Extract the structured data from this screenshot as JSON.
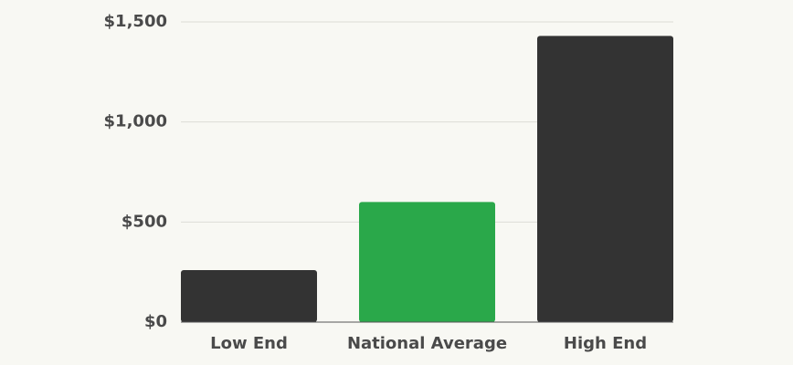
{
  "chart_data": {
    "type": "bar",
    "categories": [
      "Low End",
      "National Average",
      "High End"
    ],
    "values": [
      260,
      600,
      1430
    ],
    "colors": [
      "#333333",
      "#2aa84a",
      "#333333"
    ],
    "ylim": [
      0,
      1500
    ],
    "yticks": [
      {
        "value": 0,
        "label": "$0"
      },
      {
        "value": 500,
        "label": "$500"
      },
      {
        "value": 1000,
        "label": "$1,000"
      },
      {
        "value": 1500,
        "label": "$1,500"
      }
    ],
    "grid": true
  }
}
